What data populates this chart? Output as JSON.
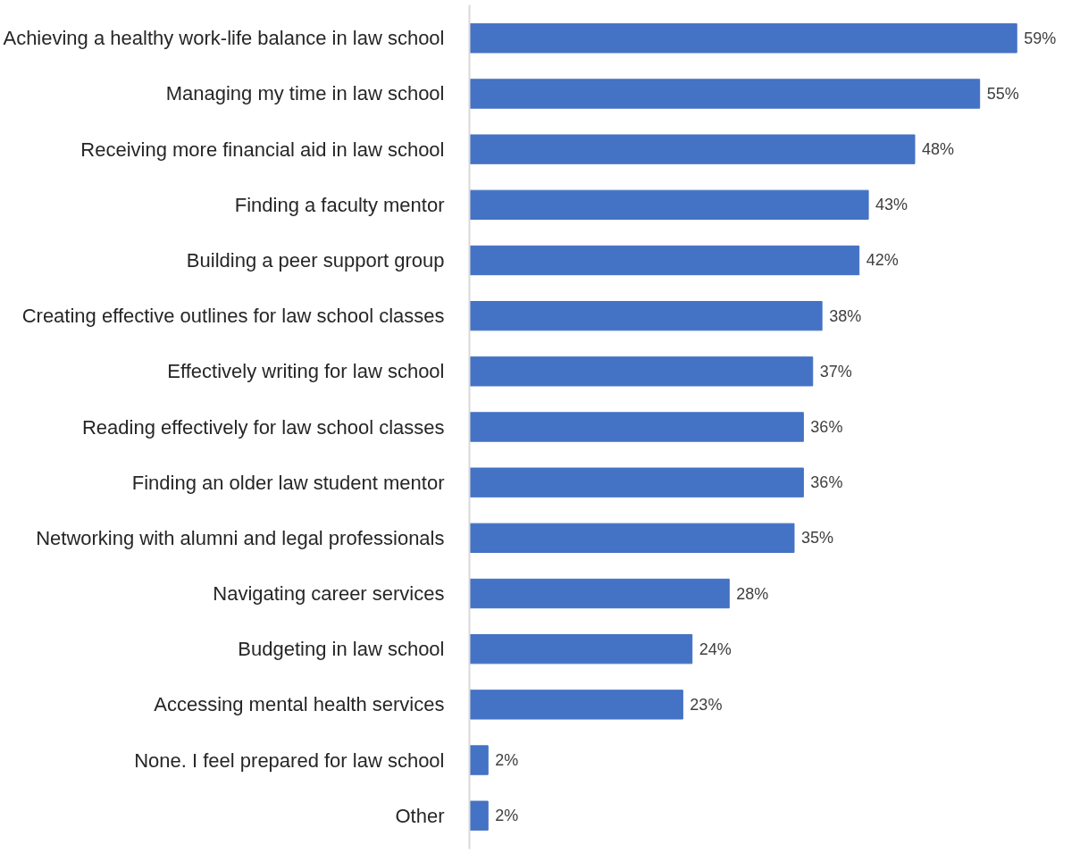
{
  "chart_data": {
    "type": "bar",
    "orientation": "horizontal",
    "categories": [
      "Achieving a healthy work-life balance in law school",
      "Managing my time in law school",
      "Receiving more financial aid in law school",
      "Finding a faculty mentor",
      "Building a peer support group",
      "Creating effective outlines for law school classes",
      "Effectively writing for law school",
      "Reading effectively for law school classes",
      "Finding an older law student mentor",
      "Networking with alumni and legal professionals",
      "Navigating career services",
      "Budgeting in law school",
      "Accessing mental health services",
      "None. I feel prepared for law school",
      "Other"
    ],
    "values": [
      59,
      55,
      48,
      43,
      42,
      38,
      37,
      36,
      36,
      35,
      28,
      24,
      23,
      2,
      2
    ],
    "value_labels": [
      "59%",
      "55%",
      "48%",
      "43%",
      "42%",
      "38%",
      "37%",
      "36%",
      "36%",
      "35%",
      "28%",
      "24%",
      "23%",
      "2%",
      "2%"
    ],
    "color": "#4472c4",
    "grid": false
  }
}
